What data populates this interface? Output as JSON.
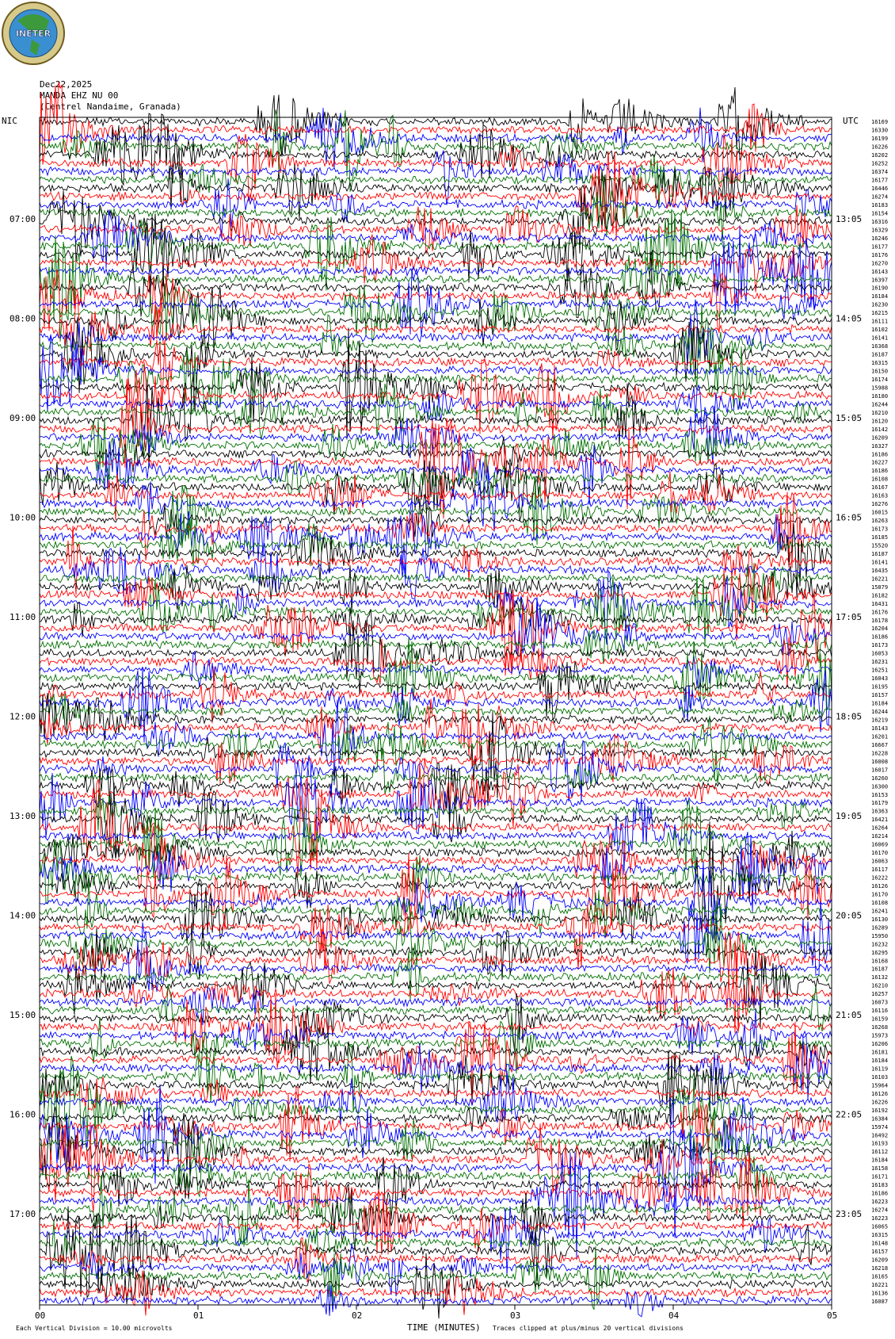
{
  "logo": {
    "text": "INETER"
  },
  "header": {
    "date": "Dec22,2025",
    "channel": "MANDA EHZ NU 00",
    "location": "(Centrel Nandaime, Granada)"
  },
  "axes": {
    "left_title": "NIC",
    "right_title": "UTC",
    "x_title": "TIME (MINUTES)",
    "x_ticks": [
      "00",
      "01",
      "02",
      "03",
      "04",
      "05"
    ]
  },
  "footer": {
    "scale_note": "Each Vertical Division = 10.00 microvolts",
    "clip_note": "Traces clipped at plus/minus 20 vertical divisions"
  },
  "colors": {
    "trace_cycle": [
      "#000000",
      "#ff0000",
      "#0000ff",
      "#007000"
    ]
  },
  "chart_data": {
    "type": "line",
    "title": "",
    "xlabel": "TIME (MINUTES)",
    "xlim": [
      0,
      5
    ],
    "left_time_labels": [
      "07:00",
      "08:00",
      "09:00",
      "10:00",
      "11:00",
      "12:00",
      "13:00",
      "14:00",
      "15:00",
      "16:00",
      "17:00"
    ],
    "right_time_labels": [
      "13:05",
      "14:05",
      "15:05",
      "16:05",
      "17:05",
      "18:05",
      "19:05",
      "20:05",
      "21:05",
      "22:05",
      "23:05"
    ],
    "trace_values": [
      "16169",
      "16330",
      "16199",
      "16226",
      "16202",
      "16252",
      "16374",
      "16177",
      "16446",
      "16274",
      "16183",
      "16154",
      "16316",
      "16329",
      "16246",
      "16177",
      "16176",
      "16270",
      "16143",
      "16397",
      "16190",
      "16184",
      "16230",
      "16215",
      "16111",
      "16102",
      "16141",
      "16368",
      "16187",
      "16315",
      "16150",
      "16174",
      "15988",
      "16180",
      "16244",
      "16210",
      "16120",
      "16142",
      "16209",
      "16327",
      "16186",
      "16227",
      "16186",
      "16108",
      "16167",
      "16163",
      "16276",
      "16015",
      "16263",
      "16173",
      "16185",
      "15520",
      "16187",
      "16141",
      "16435",
      "16221",
      "15879",
      "16182",
      "16431",
      "16176",
      "16178",
      "16204",
      "16186",
      "16173",
      "16053",
      "16231",
      "16251",
      "16043",
      "16195",
      "16157",
      "16184",
      "16244",
      "16219",
      "16143",
      "16201",
      "16667",
      "16228",
      "16008",
      "16017",
      "16260",
      "16300",
      "16153",
      "16179",
      "16363",
      "16421",
      "16264",
      "16214",
      "16069",
      "16170",
      "16063",
      "16117",
      "16222",
      "16126",
      "16170",
      "16108",
      "16241",
      "16130",
      "16289",
      "15950",
      "16232",
      "16295",
      "16168",
      "16187",
      "16132",
      "16210",
      "16257",
      "16073",
      "16116",
      "16159",
      "16268",
      "15973",
      "16206",
      "16181",
      "16184",
      "16119",
      "16103",
      "15964",
      "16126",
      "16226",
      "16192",
      "16384",
      "15974",
      "16492",
      "16193",
      "16112",
      "16184",
      "16158",
      "16171",
      "16183",
      "16186",
      "16223",
      "16274",
      "16223",
      "16065",
      "16315",
      "16148",
      "16157",
      "16209",
      "16218",
      "16165",
      "16221",
      "16136",
      "16087"
    ]
  }
}
